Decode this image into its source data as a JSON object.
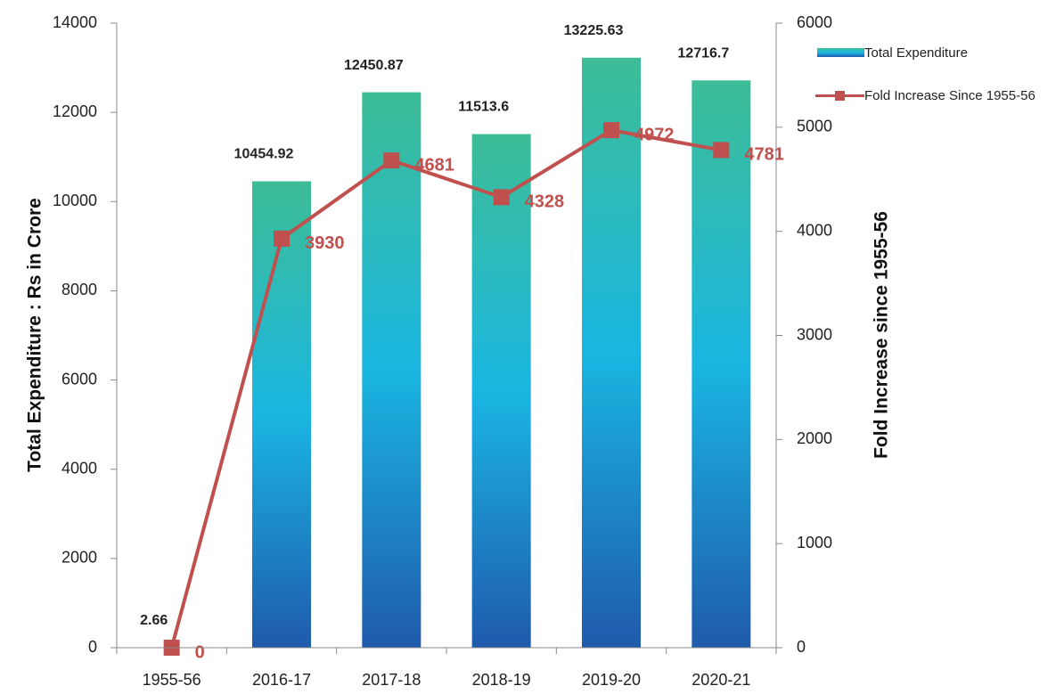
{
  "chart_data": {
    "type": "bar",
    "categories": [
      "1955-56",
      "2016-17",
      "2017-18",
      "2018-19",
      "2019-20",
      "2020-21"
    ],
    "series": [
      {
        "name": "Total Expenditure",
        "type": "bar",
        "color": "#1ab6e2",
        "values": [
          2.66,
          10454.92,
          12450.87,
          11513.6,
          13225.63,
          12716.7
        ]
      },
      {
        "name": "Fold Increase Since 1955-56",
        "type": "line",
        "axis": "y2",
        "color": "#c0504d",
        "values": [
          0,
          3930,
          4681,
          4328,
          4972,
          4781
        ]
      }
    ],
    "ylabel": "Total Expenditure : Rs in Crore",
    "y2label": "Fold Increase since 1955-56",
    "ylim": [
      0,
      14000
    ],
    "yticks": [
      0,
      2000,
      4000,
      6000,
      8000,
      10000,
      12000,
      14000
    ],
    "y2lim": [
      0,
      6000
    ],
    "y2ticks": [
      0,
      1000,
      2000,
      3000,
      4000,
      5000,
      6000
    ],
    "grid": false,
    "legend": "right"
  }
}
